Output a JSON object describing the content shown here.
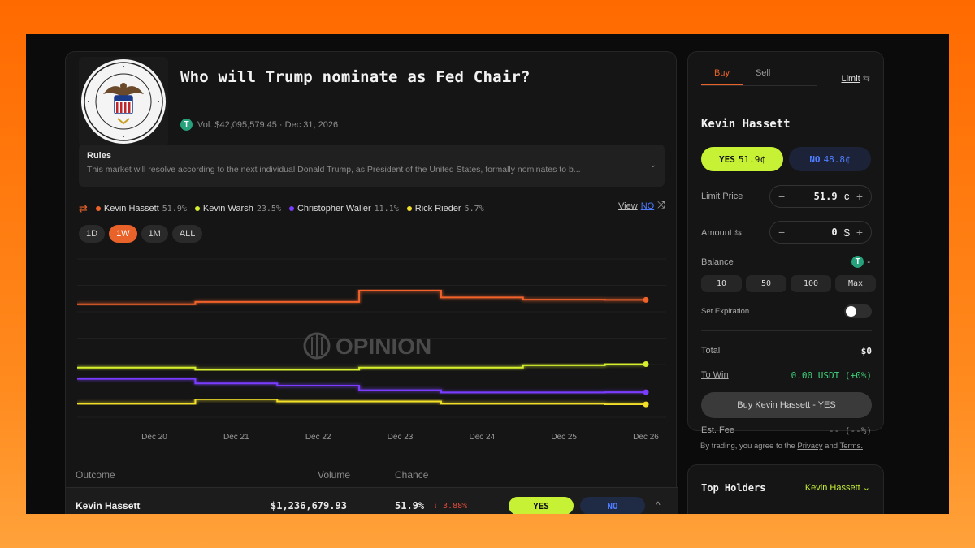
{
  "market": {
    "title": "Who will Trump nominate as Fed Chair?",
    "volume": "Vol. $42,095,579.45 · Dec 31, 2026",
    "rules_title": "Rules",
    "rules_text": "This market will resolve according to the next individual Donald Trump, as President of the United States, formally nominates to b...",
    "view_label": "View",
    "view_no": "NO",
    "watermark": "OPINION",
    "ranges": [
      "1D",
      "1W",
      "1M",
      "ALL"
    ],
    "active_range": "1W"
  },
  "legend": [
    {
      "name": "Kevin Hassett",
      "pct": "51.9%",
      "color": "#f0622a"
    },
    {
      "name": "Kevin Warsh",
      "pct": "23.5%",
      "color": "#d6ef2e"
    },
    {
      "name": "Christopher Waller",
      "pct": "11.1%",
      "color": "#7a3cff"
    },
    {
      "name": "Rick Rieder",
      "pct": "5.7%",
      "color": "#f2df2a"
    }
  ],
  "chart_data": {
    "type": "line",
    "x": [
      "Dec 20",
      "Dec 21",
      "Dec 22",
      "Dec 23",
      "Dec 24",
      "Dec 25",
      "Dec 26"
    ],
    "ylim": [
      0,
      70
    ],
    "grid": true,
    "series": [
      {
        "name": "Kevin Hassett",
        "color": "#f0622a",
        "values": [
          50,
          51,
          51,
          56,
          53,
          52,
          51.9
        ]
      },
      {
        "name": "Kevin Warsh",
        "color": "#d6ef2e",
        "values": [
          22,
          21,
          21,
          22,
          22,
          23,
          23.5
        ]
      },
      {
        "name": "Christopher Waller",
        "color": "#7a3cff",
        "values": [
          17,
          15,
          14,
          12,
          11,
          11,
          11.1
        ]
      },
      {
        "name": "Rick Rieder",
        "color": "#f2df2a",
        "values": [
          6,
          8,
          7,
          7,
          6,
          6,
          5.7
        ]
      }
    ]
  },
  "table": {
    "headers": {
      "outcome": "Outcome",
      "volume": "Volume",
      "chance": "Chance"
    },
    "row": {
      "name": "Kevin Hassett",
      "volume": "$1,236,679.93",
      "chance": "51.9%",
      "change": "↓ 3.88%",
      "yes": "YES",
      "no": "NO",
      "chevron": "^"
    }
  },
  "trade": {
    "tab_buy": "Buy",
    "tab_sell": "Sell",
    "limit": "Limit",
    "outcome": "Kevin Hassett",
    "yes_label": "YES",
    "yes_price": "51.9¢",
    "no_label": "NO",
    "no_price": "48.8¢",
    "limit_price_label": "Limit Price",
    "limit_price_value": "51.9",
    "limit_price_unit": "¢",
    "amount_label": "Amount",
    "amount_value": "0",
    "amount_unit": "$",
    "balance_label": "Balance",
    "balance_value": "-",
    "quick_amounts": [
      "10",
      "50",
      "100",
      "Max"
    ],
    "set_expiration": "Set Expiration",
    "total_label": "Total",
    "total_value": "$0",
    "to_win_label": "To Win",
    "to_win_value": "0.00 USDT (+0%)",
    "buy_button": "Buy Kevin Hassett - YES",
    "est_fee_label": "Est. Fee",
    "est_fee_value": "-- (--%)"
  },
  "disclaimer": {
    "prefix": "By trading, you agree to the",
    "privacy": "Privacy",
    "and": "and",
    "terms": "Terms."
  },
  "holders": {
    "title": "Top Holders",
    "selected": "Kevin Hassett"
  },
  "colors": {
    "accent": "#e8622a",
    "yes": "#c6f135",
    "no": "#4f7dff"
  }
}
